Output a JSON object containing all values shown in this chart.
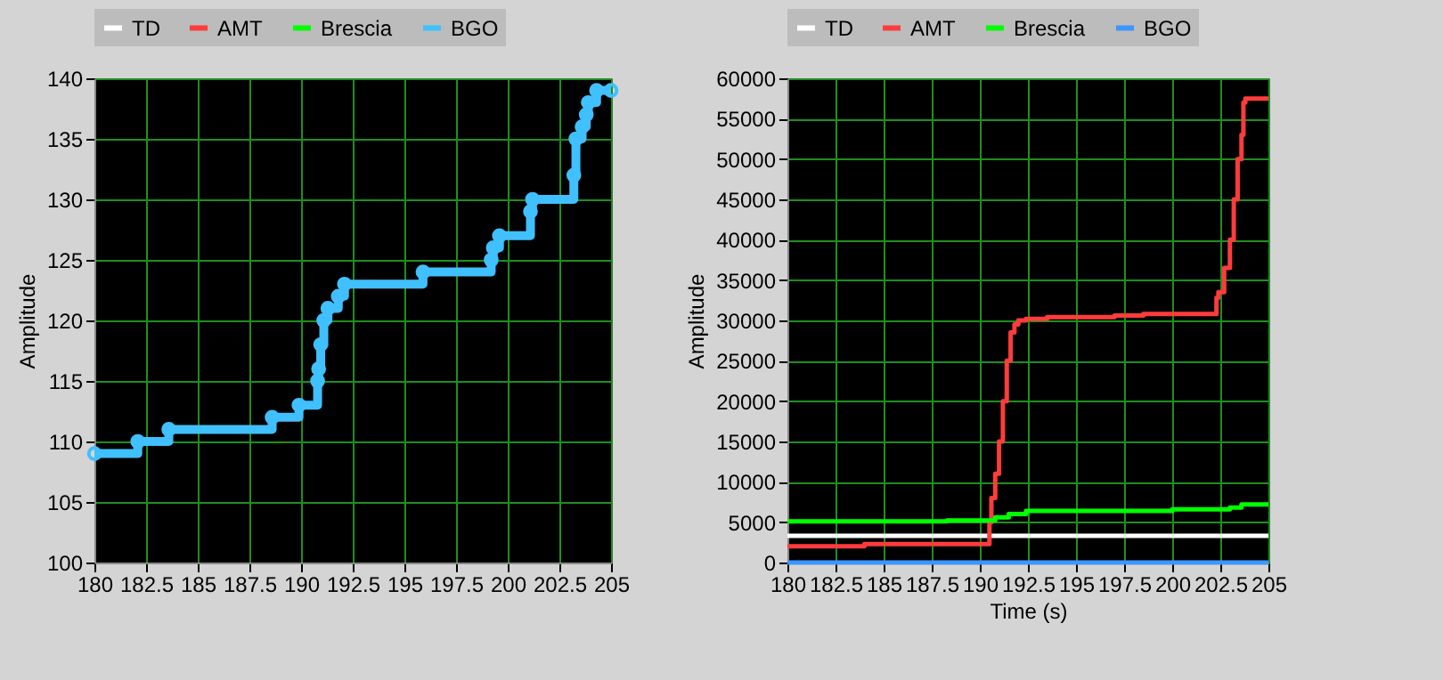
{
  "chart_data": [
    {
      "type": "step",
      "ylabel": "Amplitude",
      "xlim": [
        180,
        205
      ],
      "ylim": [
        100,
        140
      ],
      "xticks": [
        180,
        182.5,
        185,
        187.5,
        190,
        192.5,
        195,
        197.5,
        200,
        202.5,
        205
      ],
      "yticks": [
        100,
        105,
        110,
        115,
        120,
        125,
        130,
        135,
        140
      ],
      "grid": true,
      "legend": "top",
      "marker": "circle",
      "line_style": "solid",
      "series": [
        {
          "name": "TD",
          "color": "#ffffff"
        },
        {
          "name": "AMT",
          "color": "#ff3c3c"
        },
        {
          "name": "Brescia",
          "color": "#00ff00"
        },
        {
          "name": "BGO",
          "color": "#40c0ff",
          "x": [
            180,
            182.1,
            183.6,
            188.6,
            189.9,
            190.8,
            190.85,
            190.95,
            191.1,
            191.3,
            191.8,
            192.1,
            195.9,
            199.2,
            199.3,
            199.6,
            201.1,
            201.2,
            203.2,
            203.3,
            203.6,
            203.8,
            203.9,
            204.3,
            205
          ],
          "values": [
            109,
            110,
            111,
            112,
            113,
            115,
            116,
            118,
            120,
            121,
            122,
            123,
            124,
            125,
            126,
            127,
            129,
            130,
            132,
            135,
            136,
            137,
            138,
            139,
            139
          ]
        }
      ]
    },
    {
      "type": "step",
      "xlabel": "Time (s)",
      "ylabel": "Amplitude",
      "xlim": [
        180,
        205
      ],
      "ylim": [
        0,
        60000
      ],
      "xticks": [
        180,
        182.5,
        185,
        187.5,
        190,
        192.5,
        195,
        197.5,
        200,
        202.5,
        205
      ],
      "yticks": [
        0,
        5000,
        10000,
        15000,
        20000,
        25000,
        30000,
        35000,
        40000,
        45000,
        50000,
        55000,
        60000
      ],
      "grid": true,
      "legend": "top",
      "line_style": "solid",
      "series": [
        {
          "name": "TD",
          "color": "#ffffff",
          "x": [
            180,
            205
          ],
          "values": [
            3300,
            3300
          ]
        },
        {
          "name": "AMT",
          "color": "#ff3c3c",
          "x": [
            180,
            184,
            190.5,
            190.6,
            190.8,
            191,
            191.2,
            191.4,
            191.6,
            191.8,
            192,
            192.4,
            193.5,
            197,
            198.5,
            202.3,
            202.4,
            202.7,
            203,
            203.2,
            203.4,
            203.6,
            203.7,
            203.8,
            204,
            205
          ],
          "values": [
            2000,
            2300,
            5000,
            8000,
            11000,
            15000,
            20000,
            25000,
            28500,
            29500,
            30000,
            30200,
            30400,
            30600,
            30800,
            32800,
            33500,
            36500,
            40000,
            45000,
            50000,
            53000,
            57000,
            57500,
            57500,
            57500
          ]
        },
        {
          "name": "Brescia",
          "color": "#00ff00",
          "x": [
            180,
            188.3,
            190.8,
            191.5,
            192.4,
            200,
            203,
            203.6,
            205
          ],
          "values": [
            5100,
            5200,
            5600,
            6000,
            6400,
            6600,
            6800,
            7200,
            7200
          ]
        },
        {
          "name": "BGO",
          "color": "#3c96ff",
          "x": [
            180,
            205
          ],
          "values": [
            0,
            0
          ]
        }
      ]
    }
  ]
}
